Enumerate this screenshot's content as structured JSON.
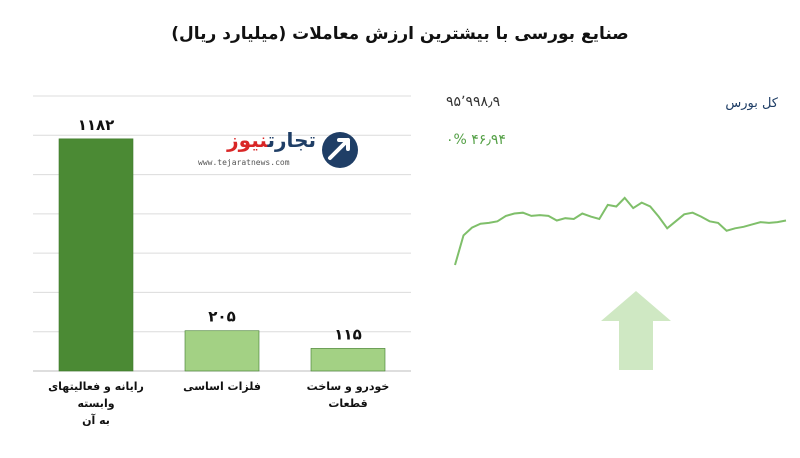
{
  "title": "صنایع بورسی با بیشترین ارزش معاملات  (میلیارد ریال)",
  "logo": {
    "brand_part1": "تجارت",
    "brand_part2": "نیوز",
    "url": "www.tejaratnews.com"
  },
  "index": {
    "name": "کل بورس",
    "value": "۹۵٬۹۹۸٫۹",
    "change": "۴۶٫۹۴  ۰%",
    "direction": "up",
    "line_color": "#7fbf6a",
    "arrow_color": "#cfe8c3",
    "series": [
      0.0,
      0.38,
      0.48,
      0.53,
      0.54,
      0.56,
      0.63,
      0.66,
      0.67,
      0.63,
      0.64,
      0.63,
      0.57,
      0.6,
      0.59,
      0.66,
      0.62,
      0.59,
      0.77,
      0.75,
      0.86,
      0.73,
      0.8,
      0.75,
      0.62,
      0.47,
      0.56,
      0.65,
      0.67,
      0.62,
      0.56,
      0.54,
      0.44,
      0.47,
      0.49,
      0.52,
      0.55,
      0.54,
      0.55,
      0.57
    ]
  },
  "chart_data": {
    "type": "bar",
    "title": "صنایع بورسی با بیشترین ارزش معاملات  (میلیارد ریال)",
    "categories": [
      "رایانه و فعالیتهای وابسته به آن",
      "فلزات اساسی",
      "خودرو و ساخت قطعات"
    ],
    "category_lines": [
      [
        "رایانه و فعالیتهای وابسته",
        "به آن"
      ],
      [
        "فلزات اساسی"
      ],
      [
        "خودرو و ساخت قطعات"
      ]
    ],
    "values": [
      1182,
      205,
      115
    ],
    "value_labels": [
      "۱۱۸۲",
      "۲۰۵",
      "۱۱۵"
    ],
    "ylim": [
      0,
      1400
    ],
    "grid": true,
    "colors": [
      "#4b8a34",
      "#a3d184",
      "#a3d184"
    ]
  }
}
